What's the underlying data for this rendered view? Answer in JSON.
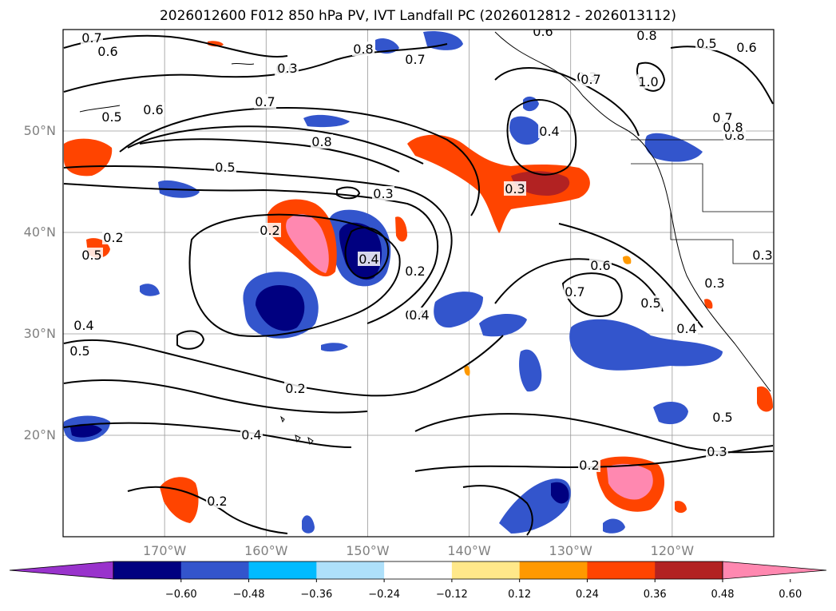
{
  "title": "2026012600 F012 850 hPa PV, IVT Landfall PC (2026012812 - 2026013112)",
  "map": {
    "extent": {
      "lon_min": -180,
      "lon_max": -110,
      "lat_min": 10,
      "lat_max": 60
    },
    "lat_ticks": [
      {
        "value": 20,
        "label": "20°N"
      },
      {
        "value": 30,
        "label": "30°N"
      },
      {
        "value": 40,
        "label": "40°N"
      },
      {
        "value": 50,
        "label": "50°N"
      }
    ],
    "lon_ticks": [
      {
        "value": -170,
        "label": "170°W"
      },
      {
        "value": -160,
        "label": "160°W"
      },
      {
        "value": -150,
        "label": "150°W"
      },
      {
        "value": -140,
        "label": "140°W"
      },
      {
        "value": -130,
        "label": "130°W"
      },
      {
        "value": -120,
        "label": "120°W"
      }
    ],
    "gridlines": true,
    "contour_labels": [
      "0.7",
      "0.6",
      "0.5",
      "0.6",
      "0.6",
      "0.7",
      "0.8",
      "0.5",
      "0.3",
      "0.2",
      "0.2",
      "0.4",
      "0.2",
      "0.4",
      "0.3",
      "0.6",
      "0.7",
      "0.5",
      "0.4",
      "0.3",
      "0.3",
      "0.4",
      "0.5",
      "0.2",
      "0.4",
      "0.2",
      "0.2",
      "0.3",
      "0.5",
      "0.8",
      "0.7",
      "0.4",
      "0.3",
      "0.8",
      "0.7",
      "1.0",
      "0.5",
      "0.6",
      "0.7",
      "0.8",
      "0.5",
      "0.3",
      "0.6",
      "0.8",
      "0.4"
    ]
  },
  "colorbar": {
    "levels": [
      -0.6,
      -0.48,
      -0.36,
      -0.24,
      -0.12,
      0.12,
      0.24,
      0.36,
      0.48,
      0.6
    ],
    "tick_labels": [
      "−0.60",
      "−0.48",
      "−0.36",
      "−0.24",
      "−0.12",
      "0.12",
      "0.24",
      "0.36",
      "0.48",
      "0.60"
    ],
    "colors": [
      "#9933cc",
      "#000080",
      "#3355cc",
      "#00bbff",
      "#aee0fa",
      "#ffffff",
      "#ffe88a",
      "#ff9900",
      "#ff4400",
      "#b22222",
      "#ff88b0"
    ],
    "extend": "both"
  }
}
